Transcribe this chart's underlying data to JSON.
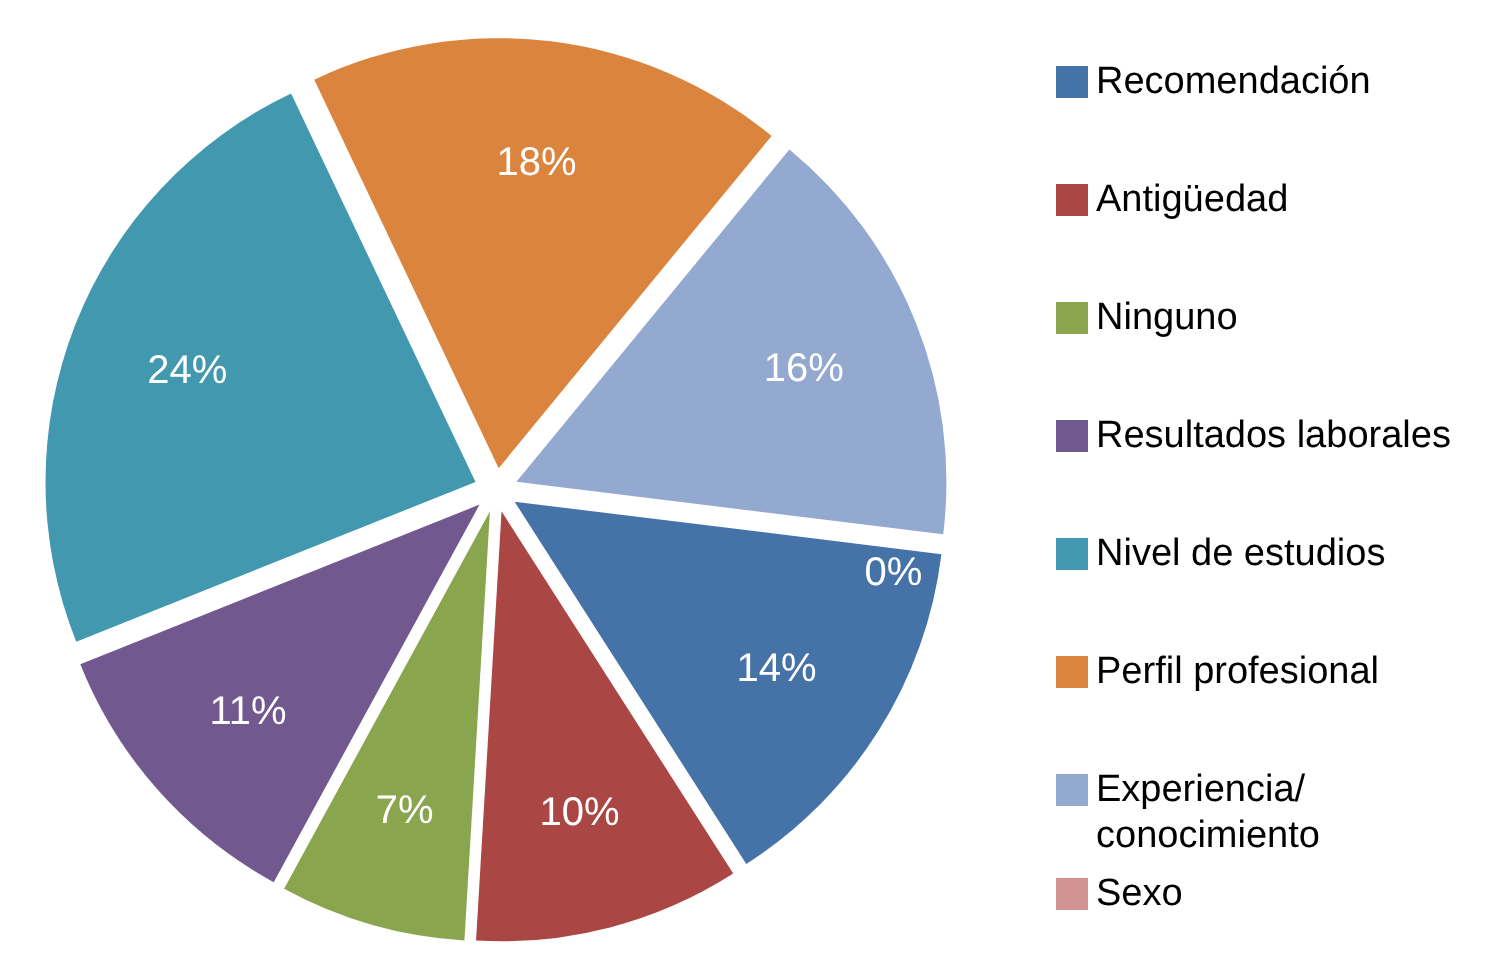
{
  "chart_data": {
    "type": "pie",
    "categories": [
      "Recomendación",
      "Antigüedad",
      "Ninguno",
      "Resultados laborales",
      "Nivel de estudios",
      "Perfil profesional",
      "Experiencia/conocimiento",
      "Sexo"
    ],
    "values": [
      14,
      10,
      7,
      11,
      24,
      18,
      16,
      0
    ],
    "colors": [
      "#4572a7",
      "#aa4643",
      "#89a54e",
      "#71588f",
      "#4198af",
      "#db843d",
      "#93a9cf",
      "#d19392"
    ],
    "value_labels": [
      "14%",
      "10%",
      "7%",
      "11%",
      "24%",
      "18%",
      "16%",
      "0%"
    ],
    "legend": "right"
  }
}
